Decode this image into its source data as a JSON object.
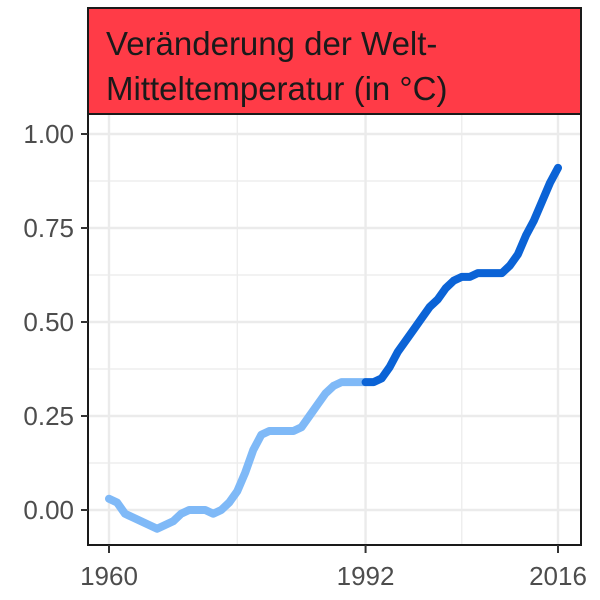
{
  "chart_data": {
    "type": "line",
    "title_lines": [
      "Veränderung der Welt-",
      "Mitteltemperatur (in °C)"
    ],
    "xlabel": "",
    "ylabel": "",
    "xlim": [
      1960,
      2016
    ],
    "ylim": [
      0,
      1
    ],
    "x_ticks": [
      1960,
      1992,
      2016
    ],
    "y_ticks": [
      0,
      0.25,
      0.5,
      0.75,
      1
    ],
    "y_tick_labels": [
      "0.00",
      "0.25",
      "0.50",
      "0.75",
      "1.00"
    ],
    "grid": true,
    "colors": {
      "title_strip": "#ff3b47",
      "series_early": "#7fb9f7",
      "series_late": "#0b63d6",
      "grid": "#ebebeb"
    },
    "series": [
      {
        "color_key": "series_early",
        "x": [
          1960,
          1961,
          1962,
          1963,
          1964,
          1965,
          1966,
          1967,
          1968,
          1969,
          1970,
          1971,
          1972,
          1973,
          1974,
          1975,
          1976,
          1977,
          1978,
          1979,
          1980,
          1981,
          1982,
          1983,
          1984,
          1985,
          1986,
          1987,
          1988,
          1989,
          1990,
          1991,
          1992
        ],
        "y": [
          0.03,
          0.02,
          -0.01,
          -0.02,
          -0.03,
          -0.04,
          -0.05,
          -0.04,
          -0.03,
          -0.01,
          0.0,
          0.0,
          0.0,
          -0.01,
          0.0,
          0.02,
          0.05,
          0.1,
          0.16,
          0.2,
          0.21,
          0.21,
          0.21,
          0.21,
          0.22,
          0.25,
          0.28,
          0.31,
          0.33,
          0.34,
          0.34,
          0.34,
          0.34
        ]
      },
      {
        "color_key": "series_late",
        "x": [
          1992,
          1993,
          1994,
          1995,
          1996,
          1997,
          1998,
          1999,
          2000,
          2001,
          2002,
          2003,
          2004,
          2005,
          2006,
          2007,
          2008,
          2009,
          2010,
          2011,
          2012,
          2013,
          2014,
          2015,
          2016
        ],
        "y": [
          0.34,
          0.34,
          0.35,
          0.38,
          0.42,
          0.45,
          0.48,
          0.51,
          0.54,
          0.56,
          0.59,
          0.61,
          0.62,
          0.62,
          0.63,
          0.63,
          0.63,
          0.63,
          0.65,
          0.68,
          0.73,
          0.77,
          0.82,
          0.87,
          0.91
        ]
      }
    ]
  }
}
